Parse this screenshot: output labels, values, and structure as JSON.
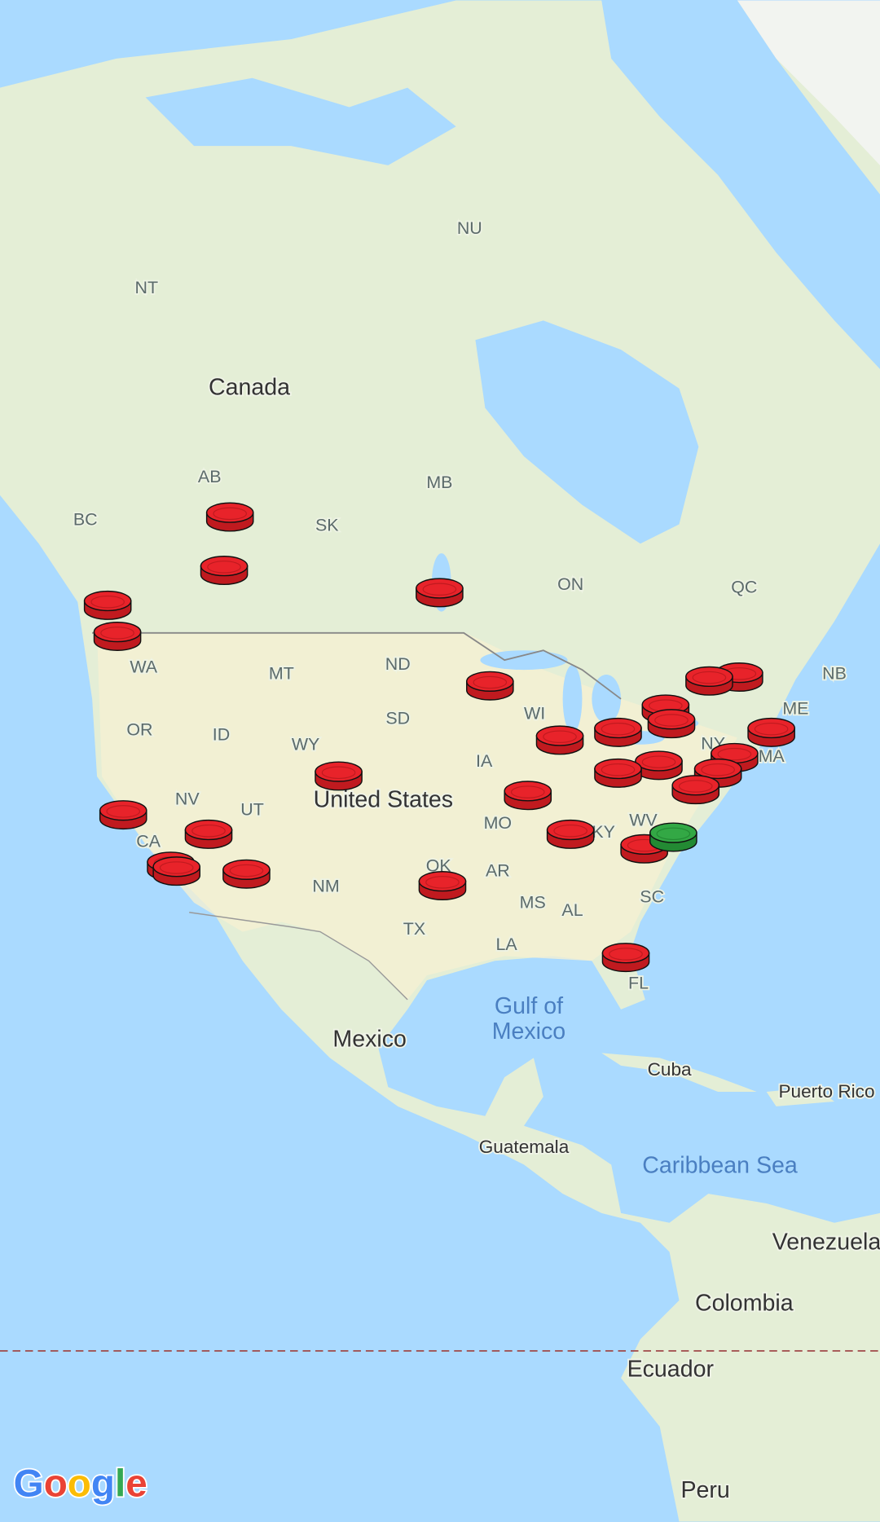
{
  "labels": {
    "nu": "NU",
    "nt": "NT",
    "canada": "Canada",
    "ab": "AB",
    "bc": "BC",
    "sk": "SK",
    "mb": "MB",
    "on": "ON",
    "qc": "QC",
    "nb": "NB",
    "me": "ME",
    "wa": "WA",
    "mt": "MT",
    "nd": "ND",
    "or": "OR",
    "id": "ID",
    "sd": "SD",
    "wy": "WY",
    "wi": "WI",
    "ia": "IA",
    "united_states": "United States",
    "nv": "NV",
    "ut": "UT",
    "ca": "CA",
    "mo": "MO",
    "ky": "KY",
    "wv": "WV",
    "ar": "AR",
    "ok": "OK",
    "nm": "NM",
    "sc": "SC",
    "ms": "MS",
    "al": "AL",
    "tx": "TX",
    "la": "LA",
    "fl": "FL",
    "ny": "NY",
    "ma": "MA",
    "gulf_line1": "Gulf of",
    "gulf_line2": "Mexico",
    "mexico": "Mexico",
    "cuba": "Cuba",
    "puerto_rico": "Puerto Rico",
    "caribbean": "Caribbean Sea",
    "guatemala": "Guatemala",
    "venezuela": "Venezuela",
    "colombia": "Colombia",
    "ecuador": "Ecuador",
    "peru": "Peru"
  },
  "logo": "Google"
}
